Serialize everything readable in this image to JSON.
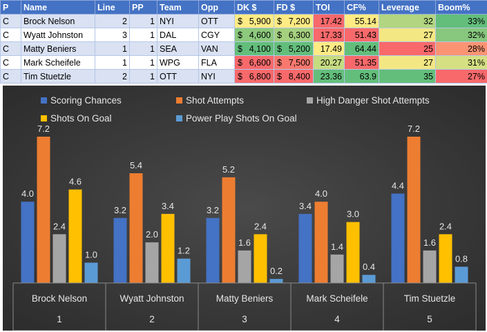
{
  "table": {
    "headers": [
      "P",
      "Name",
      "Line",
      "PP",
      "Team",
      "Opp",
      "DK $",
      "FD $",
      "TOI",
      "CF%",
      "Leverage",
      "Boom%"
    ],
    "rows": [
      {
        "p": "C",
        "name": "Brock Nelson",
        "line": "2",
        "pp": "1",
        "team": "NYI",
        "opp": "OTT",
        "dk": "5,900",
        "fd": "7,200",
        "toi": "17.42",
        "cf": "55.14",
        "lev": "32",
        "boom": "33%",
        "colors": {
          "dk": "#ffeb84",
          "fd": "#ffeb84",
          "toi": "#f8696b",
          "cf": "#ffeb84",
          "lev": "#b1d580",
          "boom": "#63be7b"
        }
      },
      {
        "p": "C",
        "name": "Wyatt Johnston",
        "line": "3",
        "pp": "1",
        "team": "DAL",
        "opp": "CGY",
        "dk": "4,600",
        "fd": "6,300",
        "toi": "17.33",
        "cf": "51.43",
        "lev": "27",
        "boom": "32%",
        "colors": {
          "dk": "#8cc97d",
          "fd": "#a5d17f",
          "toi": "#f8696b",
          "cf": "#f8696b",
          "lev": "#f3e783",
          "boom": "#86c77d"
        }
      },
      {
        "p": "C",
        "name": "Matty Beniers",
        "line": "1",
        "pp": "1",
        "team": "SEA",
        "opp": "VAN",
        "dk": "4,100",
        "fd": "5,200",
        "toi": "17.49",
        "cf": "64.44",
        "lev": "25",
        "boom": "28%",
        "colors": {
          "dk": "#63be7b",
          "fd": "#63be7b",
          "toi": "#ffeb84",
          "cf": "#63be7b",
          "lev": "#f8696b",
          "boom": "#fa9473"
        }
      },
      {
        "p": "C",
        "name": "Mark Scheifele",
        "line": "1",
        "pp": "1",
        "team": "WPG",
        "opp": "FLA",
        "dk": "6,600",
        "fd": "7,500",
        "toi": "20.27",
        "cf": "51.35",
        "lev": "27",
        "boom": "31%",
        "colors": {
          "dk": "#f8696b",
          "fd": "#f9786e",
          "toi": "#c6dc81",
          "cf": "#f8696b",
          "lev": "#f3e783",
          "boom": "#d4e082"
        }
      },
      {
        "p": "C",
        "name": "Tim Stuetzle",
        "line": "2",
        "pp": "1",
        "team": "OTT",
        "opp": "NYI",
        "dk": "6,800",
        "fd": "8,400",
        "toi": "23.36",
        "cf": "63.9",
        "lev": "35",
        "boom": "27%",
        "colors": {
          "dk": "#f8696b",
          "fd": "#f8696b",
          "toi": "#63be7b",
          "cf": "#63be7b",
          "lev": "#63be7b",
          "boom": "#f8696b"
        }
      }
    ]
  },
  "currency_symbol": "$",
  "chart_data": {
    "type": "bar",
    "title": "",
    "xlabel": "",
    "ylabel": "",
    "ylim": [
      0,
      8.5
    ],
    "grid": false,
    "legend_position": "top",
    "categories": [
      "Brock Nelson",
      "Wyatt Johnston",
      "Matty Beniers",
      "Mark Scheifele",
      "Tim Stuetzle"
    ],
    "category_numbers": [
      "1",
      "2",
      "3",
      "4",
      "5"
    ],
    "series": [
      {
        "name": "Scoring Chances",
        "color": "#4472c4",
        "values": [
          4.0,
          3.2,
          3.2,
          3.4,
          4.4
        ],
        "labels": [
          "4.0",
          "3.2",
          "3.2",
          "3.4",
          "4.4"
        ]
      },
      {
        "name": "Shot Attempts",
        "color": "#ed7d31",
        "values": [
          7.2,
          5.4,
          5.2,
          4.0,
          7.2
        ],
        "labels": [
          "7.2",
          "5.4",
          "5.2",
          "4.0",
          "7.2"
        ]
      },
      {
        "name": "High Danger Shot Attempts",
        "color": "#a5a5a5",
        "values": [
          2.4,
          2.0,
          1.6,
          1.4,
          1.6
        ],
        "labels": [
          "2.4",
          "2.0",
          "1.6",
          "1.4",
          "1.6"
        ]
      },
      {
        "name": "Shots On Goal",
        "color": "#ffc000",
        "values": [
          4.6,
          3.4,
          2.4,
          3.0,
          2.4
        ],
        "labels": [
          "4.6",
          "3.4",
          "2.4",
          "3.0",
          "2.4"
        ]
      },
      {
        "name": "Power Play Shots On Goal",
        "color": "#5b9bd5",
        "values": [
          1.0,
          1.2,
          0.2,
          0.4,
          0.8
        ],
        "labels": [
          "1.0",
          "1.2",
          "0.2",
          "0.4",
          "0.8"
        ]
      }
    ]
  }
}
